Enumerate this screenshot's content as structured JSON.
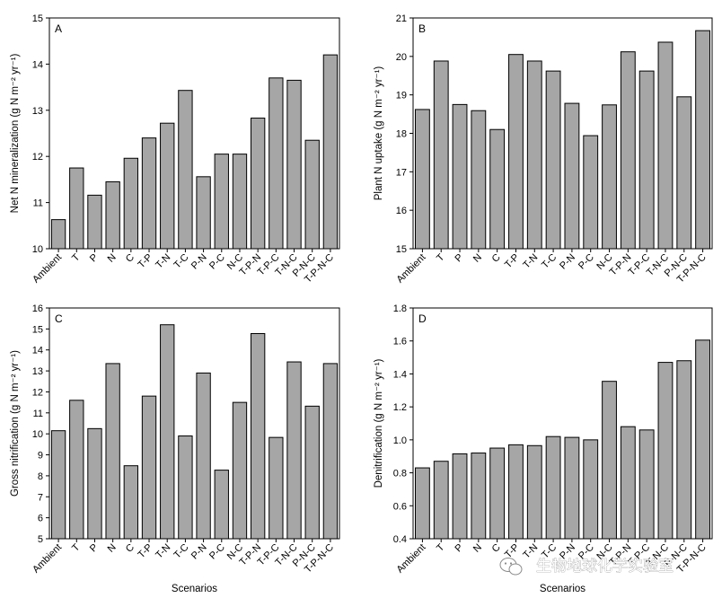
{
  "chart_data": [
    {
      "panel": "A",
      "type": "bar",
      "ylabel": "Net N mineralization (g N m⁻² yr⁻¹)",
      "xlabel": "",
      "ylim": [
        10,
        15
      ],
      "yticks": [
        10,
        11,
        12,
        13,
        14,
        15
      ],
      "categories": [
        "Ambient",
        "T",
        "P",
        "N",
        "C",
        "T-P",
        "T-N",
        "T-C",
        "P-N",
        "P-C",
        "N-C",
        "T-P-N",
        "T-P-C",
        "T-N-C",
        "P-N-C",
        "T-P-N-C"
      ],
      "values": [
        10.63,
        11.75,
        11.16,
        11.45,
        11.96,
        12.4,
        12.72,
        13.43,
        11.56,
        12.05,
        12.05,
        12.83,
        13.7,
        13.65,
        12.35,
        14.2
      ]
    },
    {
      "panel": "B",
      "type": "bar",
      "ylabel": "Plant N uptake (g N m⁻² yr⁻¹)",
      "xlabel": "",
      "ylim": [
        15,
        21
      ],
      "yticks": [
        15,
        16,
        17,
        18,
        19,
        20,
        21
      ],
      "categories": [
        "Ambient",
        "T",
        "P",
        "N",
        "C",
        "T-P",
        "T-N",
        "T-C",
        "P-N",
        "P-C",
        "N-C",
        "T-P-N",
        "T-P-C",
        "T-N-C",
        "P-N-C",
        "T-P-N-C"
      ],
      "values": [
        18.62,
        19.88,
        18.75,
        18.59,
        18.1,
        20.05,
        19.88,
        19.62,
        18.78,
        17.94,
        18.74,
        20.12,
        19.62,
        20.37,
        18.95,
        20.67
      ]
    },
    {
      "panel": "C",
      "type": "bar",
      "ylabel": "Gross nitrification (g N m⁻² yr⁻¹)",
      "xlabel": "Scenarios",
      "ylim": [
        5,
        16
      ],
      "yticks": [
        5,
        6,
        7,
        8,
        9,
        10,
        11,
        12,
        13,
        14,
        15,
        16
      ],
      "categories": [
        "Ambient",
        "T",
        "P",
        "N",
        "C",
        "T-P",
        "T-N",
        "T-C",
        "P-N",
        "P-C",
        "N-C",
        "T-P-N",
        "T-P-C",
        "T-N-C",
        "P-N-C",
        "T-P-N-C"
      ],
      "values": [
        10.15,
        11.6,
        10.25,
        13.35,
        8.48,
        11.8,
        15.2,
        9.9,
        12.9,
        8.27,
        11.5,
        14.78,
        9.83,
        13.43,
        11.32,
        13.35
      ]
    },
    {
      "panel": "D",
      "type": "bar",
      "ylabel": "Denitrification (g N m⁻² yr⁻¹)",
      "xlabel": "Scenarios",
      "ylim": [
        0.4,
        1.8
      ],
      "yticks": [
        0.4,
        0.6,
        0.8,
        1.0,
        1.2,
        1.4,
        1.6,
        1.8
      ],
      "ytick_labels": [
        "0.4",
        "0.6",
        "0.8",
        "1.0",
        "1.2",
        "1.4",
        "1.6",
        "1.8"
      ],
      "categories": [
        "Ambient",
        "T",
        "P",
        "N",
        "C",
        "T-P",
        "T-N",
        "T-C",
        "P-N",
        "P-C",
        "N-C",
        "T-P-N",
        "T-P-C",
        "T-N-C",
        "P-N-C",
        "T-P-N-C"
      ],
      "values": [
        0.83,
        0.87,
        0.915,
        0.92,
        0.95,
        0.97,
        0.965,
        1.02,
        1.015,
        1.0,
        1.355,
        1.08,
        1.06,
        1.47,
        1.48,
        1.605
      ]
    }
  ],
  "colors": {
    "bar_fill": "#a6a6a6",
    "bar_stroke": "#000000"
  },
  "watermark": {
    "text": "生物地球化学实验室",
    "icon": "wechat-logo-icon"
  }
}
